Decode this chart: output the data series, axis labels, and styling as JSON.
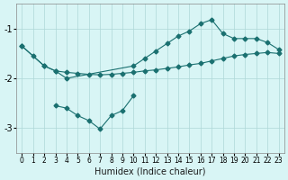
{
  "xlabel": "Humidex (Indice chaleur)",
  "ylabel": "",
  "bg_color": "#d8f5f5",
  "line_color": "#1a7070",
  "xlim": [
    -0.5,
    23.5
  ],
  "ylim": [
    -3.5,
    -0.5
  ],
  "yticks": [
    -3,
    -2,
    -1
  ],
  "xticks": [
    0,
    1,
    2,
    3,
    4,
    5,
    6,
    7,
    8,
    9,
    10,
    11,
    12,
    13,
    14,
    15,
    16,
    17,
    18,
    19,
    20,
    21,
    22,
    23
  ],
  "series1_x": [
    0,
    1,
    2,
    3,
    4,
    5,
    6,
    7,
    8,
    9,
    10,
    11,
    12,
    13,
    14,
    15,
    16,
    17,
    18,
    19,
    20,
    21,
    22,
    23
  ],
  "series1_y": [
    -1.35,
    -1.55,
    -1.75,
    -1.85,
    -1.88,
    -1.9,
    -1.92,
    -1.93,
    -1.92,
    -1.9,
    -1.88,
    -1.85,
    -1.83,
    -1.8,
    -1.77,
    -1.73,
    -1.7,
    -1.65,
    -1.6,
    -1.55,
    -1.52,
    -1.5,
    -1.48,
    -1.5
  ],
  "series2_x": [
    0,
    2,
    3,
    4,
    10,
    11,
    12,
    13,
    14,
    15,
    16,
    17,
    18,
    19,
    20,
    21,
    22,
    23
  ],
  "series2_y": [
    -1.35,
    -1.75,
    -1.85,
    -2.0,
    -1.75,
    -1.6,
    -1.45,
    -1.3,
    -1.15,
    -1.05,
    -0.9,
    -0.82,
    -1.1,
    -1.2,
    -1.2,
    -1.2,
    -1.28,
    -1.42
  ],
  "series3_x": [
    3,
    4,
    5,
    6,
    7,
    8,
    9,
    10
  ],
  "series3_y": [
    -2.55,
    -2.6,
    -2.75,
    -2.85,
    -3.02,
    -2.75,
    -2.65,
    -2.35
  ],
  "marker": "D",
  "markersize": 2.5
}
